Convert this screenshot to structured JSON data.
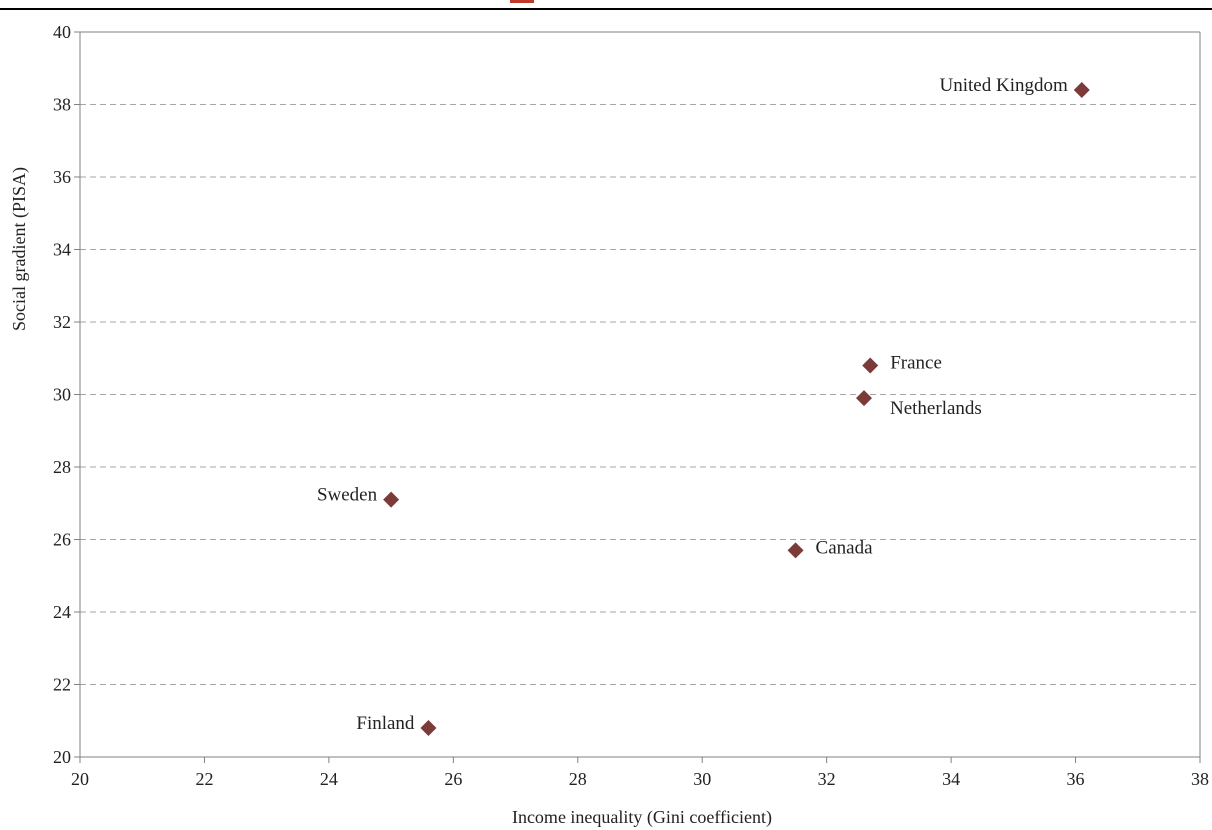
{
  "chart_data": {
    "type": "scatter",
    "title": "",
    "xlabel": "Income inequality (Gini coefficient)",
    "ylabel": "Social gradient (PISA)",
    "xlim": [
      20,
      38
    ],
    "ylim": [
      20,
      40
    ],
    "xticks": [
      20,
      22,
      24,
      26,
      28,
      30,
      32,
      34,
      36,
      38
    ],
    "yticks": [
      20,
      22,
      24,
      26,
      28,
      30,
      32,
      34,
      36,
      38,
      40
    ],
    "grid": "horizontal-dashed",
    "legend": "none",
    "marker": "diamond",
    "colors": {
      "marker": "#7b3b38",
      "top_rule": "#000000",
      "grid": "#a6a6a6",
      "axis": "#808080"
    },
    "points": [
      {
        "label": "United Kingdom",
        "x": 36.1,
        "y": 38.4,
        "label_side": "left"
      },
      {
        "label": "France",
        "x": 32.7,
        "y": 30.8,
        "label_side": "right"
      },
      {
        "label": "Netherlands",
        "x": 32.6,
        "y": 29.9,
        "label_side": "right-below"
      },
      {
        "label": "Sweden",
        "x": 25.0,
        "y": 27.1,
        "label_side": "left"
      },
      {
        "label": "Canada",
        "x": 31.5,
        "y": 25.7,
        "label_side": "right"
      },
      {
        "label": "Finland",
        "x": 25.6,
        "y": 20.8,
        "label_side": "left"
      }
    ]
  }
}
